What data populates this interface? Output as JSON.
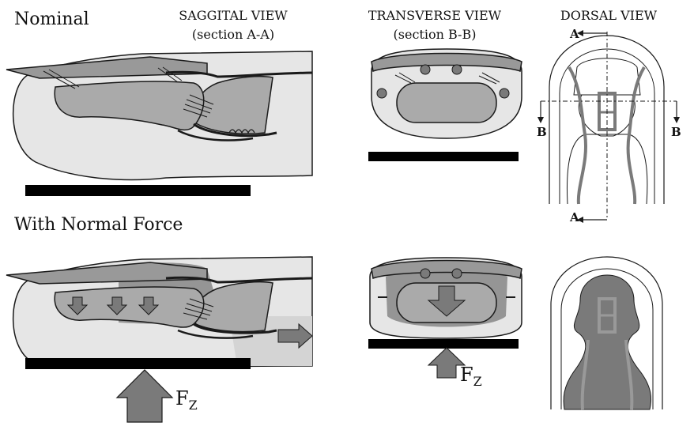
{
  "rows": {
    "nominal": "Nominal",
    "normal_force": "With Normal Force"
  },
  "views": {
    "sagittal": {
      "title": "SAGGITAL VIEW",
      "section": "(section A-A)"
    },
    "transverse": {
      "title": "TRANSVERSE VIEW",
      "section": "(section B-B)"
    },
    "dorsal": {
      "title": "DORSAL VIEW"
    }
  },
  "section_markers": {
    "a": "A",
    "b": "B"
  },
  "force": {
    "symbol": "F",
    "subscript": "Z"
  },
  "colors": {
    "tissue": "#e6e6e6",
    "bone": "#aaaaaa",
    "nail": "#999999",
    "compressed": "#7a7a7a",
    "outline": "#1a1a1a",
    "contact_surface": "#000000",
    "arrow": "#7a7a7a"
  }
}
